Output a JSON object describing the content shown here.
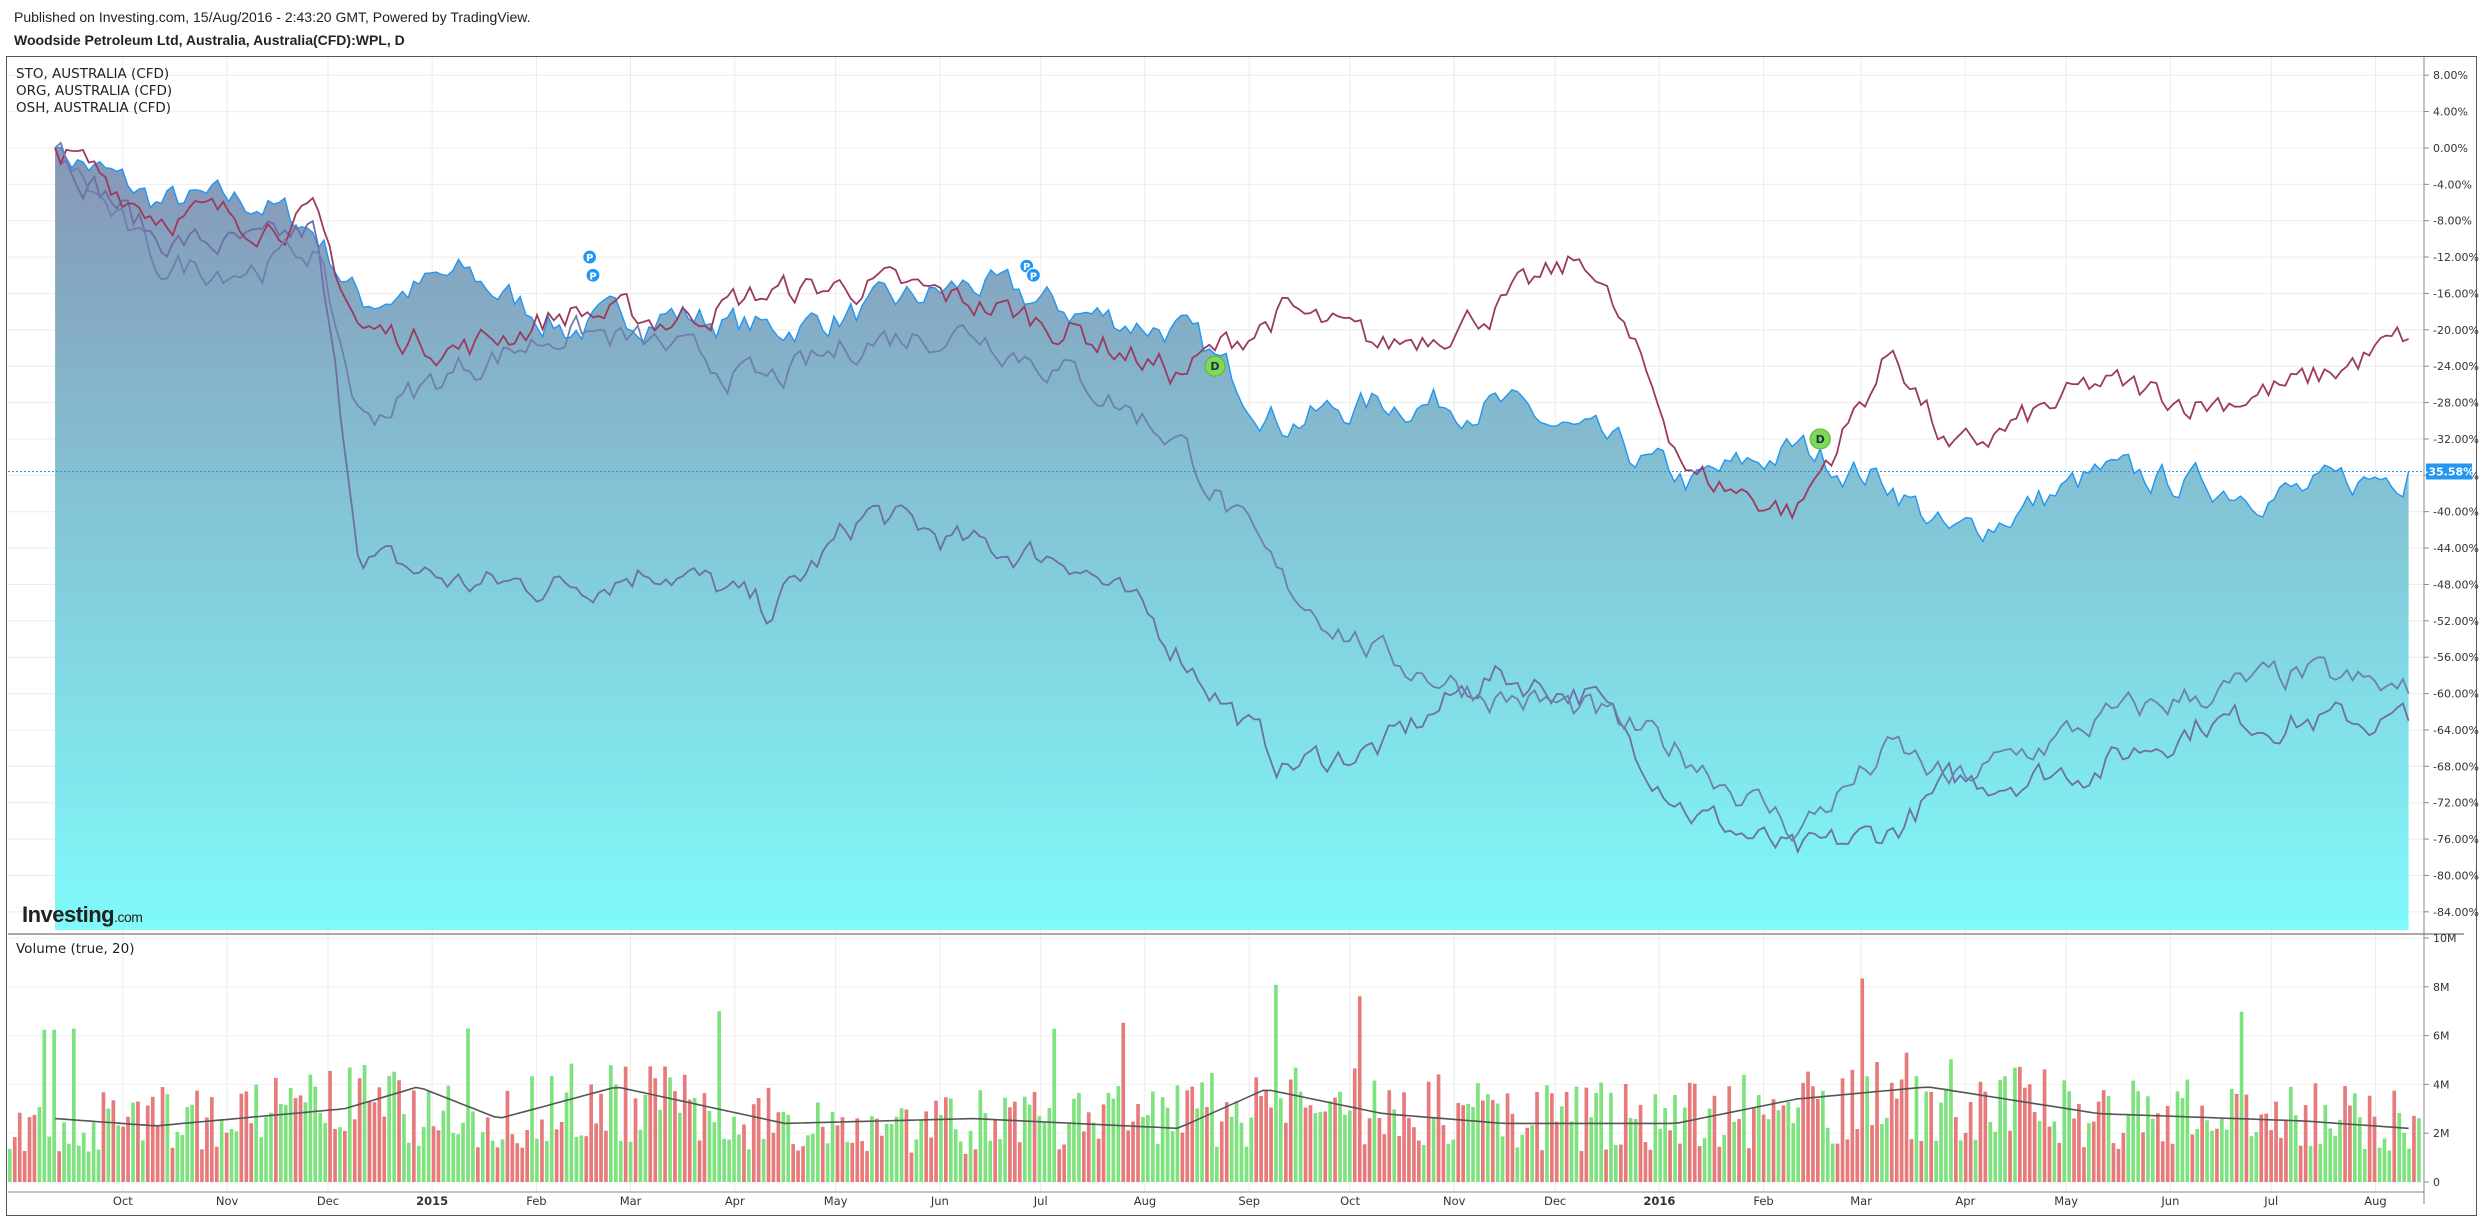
{
  "header": {
    "published": "Published on Investing.com, 15/Aug/2016 - 2:43:20 GMT, Powered by TradingView.",
    "title": "Woodside Petroleum Ltd, Australia, Australia(CFD):WPL, D"
  },
  "logo": {
    "brand": "Investing",
    "suffix": ".com"
  },
  "colors": {
    "area_top": "#8696b6",
    "area_bottom": "#80fafa",
    "area_line": "#2196f3",
    "sto": "#6d6fa5",
    "org": "#9b3a5e",
    "osh": "#6f7fb0",
    "last_badge": "#2196f3",
    "vol_up": "#7ee37e",
    "vol_down": "#e77b7b",
    "vol_ma": "#555555"
  },
  "chart_data": [
    {
      "type": "area",
      "ylim": [
        -86,
        10
      ],
      "y_ticks": [
        "8.00%",
        "4.00%",
        "0.00%",
        "-4.00%",
        "-8.00%",
        "-12.00%",
        "-16.00%",
        "-20.00%",
        "-24.00%",
        "-28.00%",
        "-32.00%",
        "-36.00%",
        "-40.00%",
        "-44.00%",
        "-48.00%",
        "-52.00%",
        "-56.00%",
        "-60.00%",
        "-64.00%",
        "-68.00%",
        "-72.00%",
        "-76.00%",
        "-80.00%",
        "-84.00%"
      ],
      "x_ticks": [
        "Oct",
        "Nov",
        "Dec",
        "2015",
        "Feb",
        "Mar",
        "Apr",
        "May",
        "Jun",
        "Jul",
        "Aug",
        "Sep",
        "Oct",
        "Nov",
        "Dec",
        "2016",
        "Feb",
        "Mar",
        "Apr",
        "May",
        "Jun",
        "Jul",
        "Aug"
      ],
      "last_value_label": "-35.58%",
      "legend": [
        "STO, AUSTRALIA (CFD)",
        "ORG, AUSTRALIA (CFD)",
        "OSH, AUSTRALIA (CFD)"
      ],
      "series": [
        {
          "name": "Woodside Petroleum Ltd, Australia, Australia(CFD):WPL, D",
          "x": [
            "2014-09-15",
            "2014-10-15",
            "2014-11-15",
            "2014-12-01",
            "2014-12-15",
            "2015-01-15",
            "2015-02-15",
            "2015-03-15",
            "2015-04-15",
            "2015-05-15",
            "2015-06-15",
            "2015-07-15",
            "2015-08-15",
            "2015-09-15",
            "2015-10-15",
            "2015-11-15",
            "2015-12-15",
            "2016-01-15",
            "2016-02-15",
            "2016-03-15",
            "2016-04-01",
            "2016-05-15",
            "2016-06-15",
            "2016-07-15",
            "2016-08-15"
          ],
          "values": [
            0,
            -6,
            -6,
            -9,
            -17,
            -14,
            -20,
            -18,
            -20,
            -18,
            -15,
            -18,
            -20,
            -30,
            -28,
            -28,
            -32,
            -37,
            -33,
            -37,
            -43,
            -36,
            -37,
            -38,
            -35.58
          ]
        },
        {
          "name": "STO, AUSTRALIA (CFD)",
          "x": [
            "2014-09-15",
            "2014-10-15",
            "2014-11-15",
            "2014-12-01",
            "2014-12-15",
            "2015-01-15",
            "2015-02-15",
            "2015-03-15",
            "2015-04-15",
            "2015-05-15",
            "2015-06-15",
            "2015-07-15",
            "2015-08-15",
            "2015-09-15",
            "2015-10-15",
            "2015-11-15",
            "2015-12-15",
            "2016-01-15",
            "2016-02-15",
            "2016-03-15",
            "2016-04-01",
            "2016-05-15",
            "2016-06-15",
            "2016-07-15",
            "2016-08-15"
          ],
          "values": [
            0,
            -10,
            -11,
            -9,
            -45,
            -48,
            -48,
            -46,
            -51,
            -40,
            -44,
            -45,
            -55,
            -68,
            -66,
            -58,
            -60,
            -73,
            -78,
            -75,
            -70,
            -68,
            -63,
            -63,
            -63
          ]
        },
        {
          "name": "ORG, AUSTRALIA (CFD)",
          "x": [
            "2014-09-15",
            "2014-10-15",
            "2014-11-15",
            "2014-12-01",
            "2014-12-15",
            "2015-01-15",
            "2015-02-15",
            "2015-03-15",
            "2015-04-15",
            "2015-05-15",
            "2015-06-15",
            "2015-07-15",
            "2015-08-15",
            "2015-09-15",
            "2015-10-15",
            "2015-11-15",
            "2015-12-15",
            "2016-01-15",
            "2016-02-15",
            "2016-03-15",
            "2016-04-01",
            "2016-05-15",
            "2016-06-15",
            "2016-07-15",
            "2016-08-15"
          ],
          "values": [
            0,
            -7,
            -8,
            -8,
            -20,
            -22,
            -18,
            -19,
            -16,
            -15,
            -17,
            -20,
            -25,
            -18,
            -22,
            -18,
            -12,
            -36,
            -40,
            -22,
            -34,
            -26,
            -28,
            -26,
            -21
          ]
        },
        {
          "name": "OSH, AUSTRALIA (CFD)",
          "x": [
            "2014-09-15",
            "2014-10-15",
            "2014-11-15",
            "2014-12-01",
            "2014-12-15",
            "2015-01-15",
            "2015-02-15",
            "2015-03-15",
            "2015-04-15",
            "2015-05-15",
            "2015-06-15",
            "2015-07-15",
            "2015-08-15",
            "2015-09-15",
            "2015-10-15",
            "2015-11-15",
            "2015-12-15",
            "2016-01-15",
            "2016-02-15",
            "2016-03-15",
            "2016-04-01",
            "2016-05-15",
            "2016-06-15",
            "2016-07-15",
            "2016-08-15"
          ],
          "values": [
            0,
            -13,
            -13,
            -11,
            -30,
            -24,
            -20,
            -22,
            -26,
            -21,
            -20,
            -25,
            -32,
            -48,
            -56,
            -60,
            -62,
            -67,
            -75,
            -66,
            -70,
            -63,
            -60,
            -58,
            -60
          ]
        }
      ],
      "markers": [
        {
          "label": "P",
          "x": "2015-02-21",
          "y": -12
        },
        {
          "label": "P",
          "x": "2015-02-22",
          "y": -14
        },
        {
          "label": "P",
          "x": "2015-07-01",
          "y": -13
        },
        {
          "label": "P",
          "x": "2015-07-03",
          "y": -14
        },
        {
          "label": "D",
          "x": "2015-08-26",
          "y": -24
        },
        {
          "label": "D",
          "x": "2016-02-22",
          "y": -32
        }
      ]
    },
    {
      "type": "bar",
      "title": "Volume (true, 20)",
      "ylim": [
        0,
        10
      ],
      "y_ticks": [
        "10M",
        "8M",
        "6M",
        "4M",
        "2M",
        "0"
      ],
      "volume_profile": {
        "x": [
          "2014-09-15",
          "2014-11-15",
          "2014-12-15",
          "2015-01-15",
          "2015-03-01",
          "2015-04-15",
          "2015-06-15",
          "2015-08-15",
          "2015-09-15",
          "2015-11-15",
          "2016-01-15",
          "2016-03-15",
          "2016-05-15",
          "2016-08-15"
        ],
        "values_m": [
          2.6,
          2.8,
          3.4,
          2.6,
          3.6,
          2.6,
          2.5,
          2.8,
          3.4,
          2.8,
          2.8,
          3.6,
          3.0,
          2.8
        ]
      },
      "moving_average_m": {
        "x": [
          "2014-09-15",
          "2014-10-15",
          "2014-12-10",
          "2015-01-01",
          "2015-01-25",
          "2015-03-01",
          "2015-04-20",
          "2015-06-15",
          "2015-08-15",
          "2015-09-10",
          "2015-10-15",
          "2015-11-20",
          "2016-01-10",
          "2016-02-15",
          "2016-03-25",
          "2016-05-15",
          "2016-07-15",
          "2016-08-15"
        ],
        "values": [
          2.6,
          2.3,
          3.0,
          3.9,
          2.6,
          3.9,
          2.4,
          2.6,
          2.2,
          3.8,
          2.8,
          2.4,
          2.4,
          3.4,
          3.9,
          2.8,
          2.5,
          2.2
        ]
      }
    }
  ]
}
